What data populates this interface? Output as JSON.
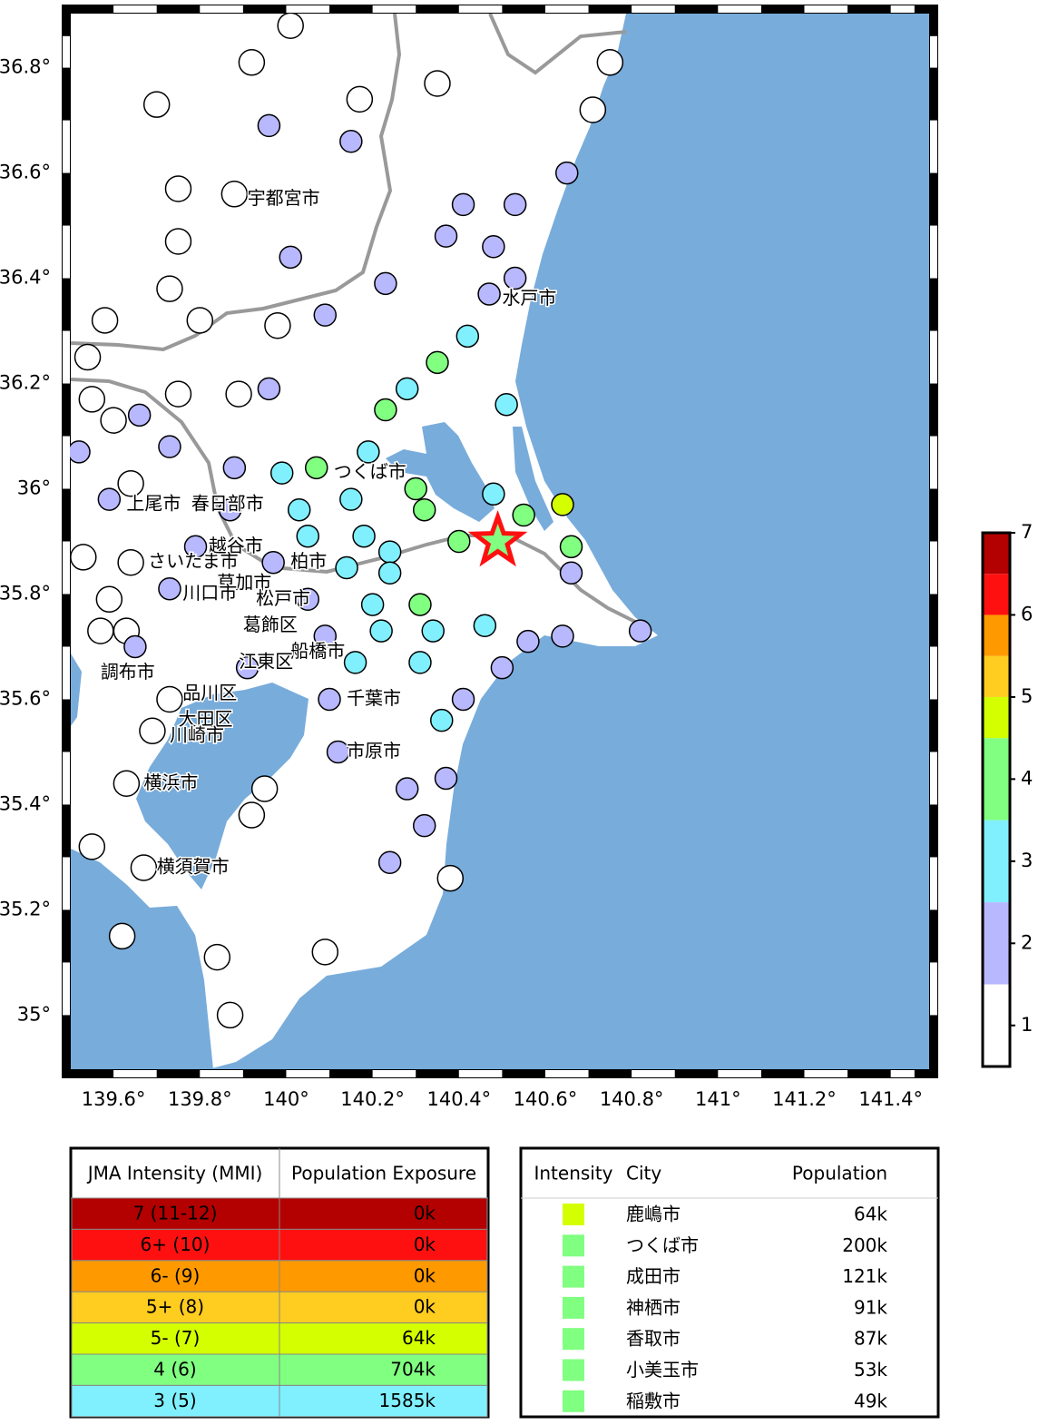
{
  "map": {
    "xlim": [
      139.48,
      141.51
    ],
    "ylim": [
      34.88,
      36.92
    ],
    "xticks": [
      {
        "value": 139.6,
        "label": "139.6°"
      },
      {
        "value": 139.8,
        "label": "139.8°"
      },
      {
        "value": 140,
        "label": "140°"
      },
      {
        "value": 140.2,
        "label": "140.2°"
      },
      {
        "value": 140.4,
        "label": "140.4°"
      },
      {
        "value": 140.6,
        "label": "140.6°"
      },
      {
        "value": 140.8,
        "label": "140.8°"
      },
      {
        "value": 141,
        "label": "141°"
      },
      {
        "value": 141.2,
        "label": "141.2°"
      },
      {
        "value": 141.4,
        "label": "141.4°"
      }
    ],
    "yticks": [
      {
        "value": 35,
        "label": "35°"
      },
      {
        "value": 35.2,
        "label": "35.2°"
      },
      {
        "value": 35.4,
        "label": "35.4°"
      },
      {
        "value": 35.6,
        "label": "35.6°"
      },
      {
        "value": 35.8,
        "label": "35.8°"
      },
      {
        "value": 36,
        "label": "36°"
      },
      {
        "value": 36.2,
        "label": "36.2°"
      },
      {
        "value": 36.4,
        "label": "36.4°"
      },
      {
        "value": 36.6,
        "label": "36.6°"
      },
      {
        "value": 36.8,
        "label": "36.8°"
      }
    ],
    "epicenter": {
      "lon": 140.49,
      "lat": 35.9
    },
    "stations": {
      "lon": [
        140.01,
        139.92,
        139.7,
        139.75,
        139.88,
        139.75,
        139.73,
        139.58,
        139.8,
        139.98,
        139.54,
        139.55,
        139.6,
        139.75,
        139.89,
        139.64,
        139.53,
        139.64,
        139.59,
        139.57,
        139.63,
        139.73,
        139.69,
        139.63,
        139.95,
        139.92,
        139.55,
        139.67,
        139.62,
        139.84,
        139.87,
        140.09,
        140.38,
        140.35,
        140.17,
        140.75,
        140.71,
        139.96,
        140.15,
        140.65,
        140.41,
        140.53,
        140.37,
        140.48,
        140.01,
        140.23,
        140.53,
        140.47,
        140.09,
        139.96,
        139.66,
        139.73,
        139.52,
        139.59,
        139.88,
        139.87,
        139.79,
        139.73,
        139.97,
        140.05,
        140.09,
        139.91,
        140.1,
        140.12,
        140.41,
        140.28,
        140.37,
        140.32,
        140.24,
        140.56,
        140.64,
        140.5,
        140.66,
        140.82,
        139.65,
        140.42,
        140.28,
        140.51,
        140.19,
        139.99,
        140.15,
        140.03,
        140.05,
        140.18,
        140.24,
        140.14,
        140.24,
        140.2,
        140.22,
        140.34,
        140.46,
        140.31,
        140.16,
        140.36,
        140.48,
        140.35,
        140.23,
        140.07,
        140.3,
        140.32,
        140.4,
        140.55,
        140.66,
        140.31,
        140.64
      ],
      "lat": [
        36.88,
        36.81,
        36.73,
        36.57,
        36.56,
        36.47,
        36.38,
        36.32,
        36.32,
        36.31,
        36.25,
        36.17,
        36.13,
        36.18,
        36.18,
        36.01,
        35.87,
        35.86,
        35.79,
        35.73,
        35.73,
        35.6,
        35.54,
        35.44,
        35.43,
        35.38,
        35.32,
        35.28,
        35.15,
        35.11,
        35.0,
        35.12,
        35.26,
        36.77,
        36.74,
        36.81,
        36.72,
        36.69,
        36.66,
        36.6,
        36.54,
        36.54,
        36.48,
        36.46,
        36.44,
        36.39,
        36.4,
        36.37,
        36.33,
        36.19,
        36.14,
        36.08,
        36.07,
        35.98,
        36.04,
        35.96,
        35.89,
        35.81,
        35.86,
        35.79,
        35.72,
        35.66,
        35.6,
        35.5,
        35.6,
        35.43,
        35.45,
        35.36,
        35.29,
        35.71,
        35.72,
        35.66,
        35.84,
        35.73,
        35.7,
        36.29,
        36.19,
        36.16,
        36.07,
        36.03,
        35.98,
        35.96,
        35.91,
        35.91,
        35.88,
        35.85,
        35.84,
        35.78,
        35.73,
        35.73,
        35.74,
        35.67,
        35.67,
        35.56,
        35.99,
        36.24,
        36.15,
        36.04,
        36.0,
        35.96,
        35.9,
        35.95,
        35.89,
        35.78,
        35.97
      ],
      "intensity": [
        1,
        1,
        1,
        1,
        1,
        1,
        1,
        1,
        1,
        1,
        1,
        1,
        1,
        1,
        1,
        1,
        1,
        1,
        1,
        1,
        1,
        1,
        1,
        1,
        1,
        1,
        1,
        1,
        1,
        1,
        1,
        1,
        1,
        1,
        1,
        1,
        1,
        2,
        2,
        2,
        2,
        2,
        2,
        2,
        2,
        2,
        2,
        2,
        2,
        2,
        2,
        2,
        2,
        2,
        2,
        2,
        2,
        2,
        2,
        2,
        2,
        2,
        2,
        2,
        2,
        2,
        2,
        2,
        2,
        2,
        2,
        2,
        2,
        2,
        2,
        3,
        3,
        3,
        3,
        3,
        3,
        3,
        3,
        3,
        3,
        3,
        3,
        3,
        3,
        3,
        3,
        3,
        3,
        3,
        3,
        4,
        4,
        4,
        4,
        4,
        4,
        4,
        4,
        4,
        4.8
      ]
    },
    "cities": [
      {
        "name": "宇都宮市",
        "lon": 139.91,
        "lat": 36.55
      },
      {
        "name": "水戸市",
        "lon": 140.5,
        "lat": 36.36
      },
      {
        "name": "つくば市",
        "lon": 140.11,
        "lat": 36.03
      },
      {
        "name": "上尾市",
        "lon": 139.63,
        "lat": 35.97
      },
      {
        "name": "春日部市",
        "lon": 139.78,
        "lat": 35.97
      },
      {
        "name": "越谷市",
        "lon": 139.82,
        "lat": 35.89
      },
      {
        "name": "さいたま市",
        "lon": 139.68,
        "lat": 35.86
      },
      {
        "name": "柏市",
        "lon": 140.01,
        "lat": 35.86
      },
      {
        "name": "草加市",
        "lon": 139.84,
        "lat": 35.82
      },
      {
        "name": "川口市",
        "lon": 139.76,
        "lat": 35.8
      },
      {
        "name": "松戸市",
        "lon": 139.93,
        "lat": 35.79
      },
      {
        "name": "葛飾区",
        "lon": 139.9,
        "lat": 35.74
      },
      {
        "name": "船橋市",
        "lon": 140.01,
        "lat": 35.69
      },
      {
        "name": "江東区",
        "lon": 139.89,
        "lat": 35.67
      },
      {
        "name": "調布市",
        "lon": 139.57,
        "lat": 35.65
      },
      {
        "name": "品川区",
        "lon": 139.76,
        "lat": 35.61
      },
      {
        "name": "大田区",
        "lon": 139.75,
        "lat": 35.56
      },
      {
        "name": "川崎市",
        "lon": 139.73,
        "lat": 35.53
      },
      {
        "name": "千葉市",
        "lon": 140.14,
        "lat": 35.6
      },
      {
        "name": "市原市",
        "lon": 140.14,
        "lat": 35.5
      },
      {
        "name": "横浜市",
        "lon": 139.67,
        "lat": 35.44
      },
      {
        "name": "横須賀市",
        "lon": 139.7,
        "lat": 35.28
      }
    ]
  },
  "colorbar": {
    "ylim": [
      0.5,
      7
    ],
    "ticks": [
      1,
      2,
      3,
      4,
      5,
      6,
      7
    ],
    "segments": [
      {
        "from": 0.5,
        "to": 1.5,
        "color": "#ffffff"
      },
      {
        "from": 1.5,
        "to": 2.5,
        "color": "#b8b8ff"
      },
      {
        "from": 2.5,
        "to": 3.5,
        "color": "#80f0ff"
      },
      {
        "from": 3.5,
        "to": 4.5,
        "color": "#80ff80"
      },
      {
        "from": 4.5,
        "to": 5,
        "color": "#d4ff00"
      },
      {
        "from": 5,
        "to": 5.5,
        "color": "#ffcc20"
      },
      {
        "from": 5.5,
        "to": 6,
        "color": "#ff9900"
      },
      {
        "from": 6,
        "to": 6.5,
        "color": "#ff1010"
      },
      {
        "from": 6.5,
        "to": 7,
        "color": "#b30000"
      }
    ]
  },
  "exposure_table": {
    "headers": [
      "JMA Intensity (MMI)",
      "Population Exposure"
    ],
    "rows": [
      {
        "intensity": "7 (11-12)",
        "exposure": "0k",
        "color": "#b30000"
      },
      {
        "intensity": "6+ (10)",
        "exposure": "0k",
        "color": "#ff1010"
      },
      {
        "intensity": "6- (9)",
        "exposure": "0k",
        "color": "#ff9900"
      },
      {
        "intensity": "5+ (8)",
        "exposure": "0k",
        "color": "#ffcc20"
      },
      {
        "intensity": "5- (7)",
        "exposure": "64k",
        "color": "#d4ff00"
      },
      {
        "intensity": "4 (6)",
        "exposure": "704k",
        "color": "#80ff80"
      },
      {
        "intensity": "3 (5)",
        "exposure": "1585k",
        "color": "#80f0ff"
      }
    ]
  },
  "city_table": {
    "headers": [
      "Intensity",
      "City",
      "Population"
    ],
    "rows": [
      {
        "color": "#d4ff00",
        "city": "鹿嶋市",
        "population": "64k"
      },
      {
        "color": "#80ff80",
        "city": "つくば市",
        "population": "200k"
      },
      {
        "color": "#80ff80",
        "city": "成田市",
        "population": "121k"
      },
      {
        "color": "#80ff80",
        "city": "神栖市",
        "population": "91k"
      },
      {
        "color": "#80ff80",
        "city": "香取市",
        "population": "87k"
      },
      {
        "color": "#80ff80",
        "city": "小美玉市",
        "population": "53k"
      },
      {
        "color": "#80ff80",
        "city": "稲敷市",
        "population": "49k"
      }
    ]
  }
}
